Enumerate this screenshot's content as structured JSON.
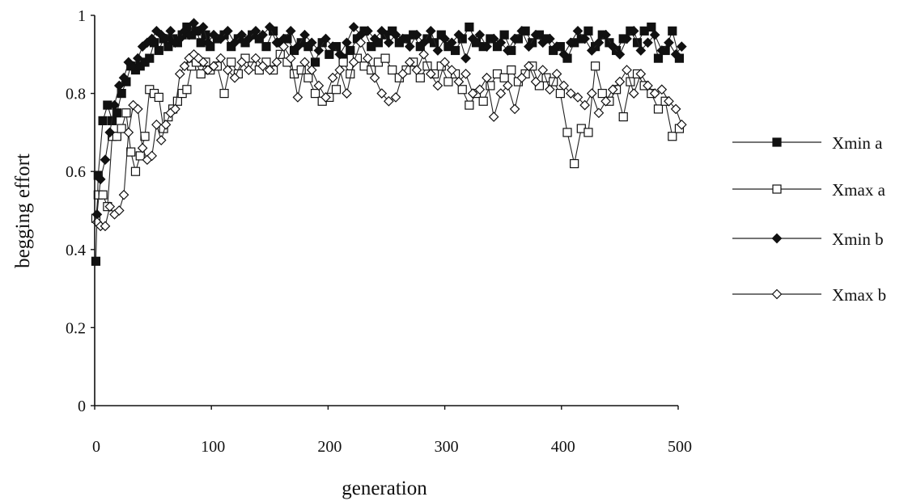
{
  "chart_data": {
    "type": "line",
    "title": "",
    "xlabel": "generation",
    "ylabel": "begging effort",
    "xlim": [
      0,
      500
    ],
    "ylim": [
      0,
      1
    ],
    "xticks": [
      "0",
      "100",
      "200",
      "300",
      "400",
      "500"
    ],
    "yticks": [
      "0",
      "0.2",
      "0.4",
      "0.6",
      "0.8",
      "1"
    ],
    "grid": false,
    "legend_position": "right",
    "series": [
      {
        "name": "Xmin a",
        "marker": "filled-square",
        "x": [
          1,
          3,
          7,
          11,
          15,
          19,
          23,
          27,
          31,
          35,
          39,
          43,
          47,
          51,
          55,
          59,
          63,
          67,
          71,
          75,
          79,
          83,
          87,
          91,
          95,
          99,
          105,
          111,
          117,
          123,
          129,
          135,
          141,
          147,
          153,
          159,
          165,
          171,
          177,
          183,
          189,
          195,
          201,
          207,
          213,
          219,
          225,
          231,
          237,
          243,
          249,
          255,
          261,
          267,
          273,
          279,
          285,
          291,
          297,
          303,
          309,
          315,
          321,
          327,
          333,
          339,
          345,
          351,
          357,
          363,
          369,
          375,
          381,
          387,
          393,
          399,
          405,
          411,
          417,
          423,
          429,
          435,
          441,
          447,
          453,
          459,
          465,
          471,
          477,
          483,
          489,
          495,
          501
        ],
        "y": [
          0.37,
          0.59,
          0.73,
          0.77,
          0.73,
          0.75,
          0.8,
          0.83,
          0.87,
          0.86,
          0.87,
          0.88,
          0.89,
          0.93,
          0.91,
          0.94,
          0.92,
          0.94,
          0.93,
          0.95,
          0.97,
          0.95,
          0.96,
          0.93,
          0.95,
          0.92,
          0.94,
          0.95,
          0.92,
          0.94,
          0.93,
          0.95,
          0.94,
          0.92,
          0.96,
          0.93,
          0.94,
          0.91,
          0.93,
          0.92,
          0.88,
          0.93,
          0.9,
          0.92,
          0.89,
          0.91,
          0.94,
          0.96,
          0.92,
          0.93,
          0.95,
          0.96,
          0.93,
          0.94,
          0.95,
          0.92,
          0.94,
          0.93,
          0.95,
          0.92,
          0.91,
          0.94,
          0.97,
          0.93,
          0.92,
          0.94,
          0.92,
          0.95,
          0.91,
          0.94,
          0.96,
          0.93,
          0.95,
          0.94,
          0.91,
          0.92,
          0.89,
          0.93,
          0.94,
          0.96,
          0.92,
          0.95,
          0.93,
          0.91,
          0.94,
          0.96,
          0.93,
          0.96,
          0.97,
          0.89,
          0.91,
          0.96,
          0.89
        ]
      },
      {
        "name": "Xmax a",
        "marker": "open-square",
        "x": [
          1,
          3,
          7,
          11,
          15,
          19,
          23,
          27,
          31,
          35,
          39,
          43,
          47,
          51,
          55,
          59,
          63,
          67,
          71,
          75,
          79,
          83,
          87,
          91,
          95,
          99,
          105,
          111,
          117,
          123,
          129,
          135,
          141,
          147,
          153,
          159,
          165,
          171,
          177,
          183,
          189,
          195,
          201,
          207,
          213,
          219,
          225,
          231,
          237,
          243,
          249,
          255,
          261,
          267,
          273,
          279,
          285,
          291,
          297,
          303,
          309,
          315,
          321,
          327,
          333,
          339,
          345,
          351,
          357,
          363,
          369,
          375,
          381,
          387,
          393,
          399,
          405,
          411,
          417,
          423,
          429,
          435,
          441,
          447,
          453,
          459,
          465,
          471,
          477,
          483,
          489,
          495,
          501
        ],
        "y": [
          0.48,
          0.54,
          0.54,
          0.51,
          0.69,
          0.69,
          0.71,
          0.75,
          0.65,
          0.6,
          0.64,
          0.69,
          0.81,
          0.8,
          0.79,
          0.71,
          0.74,
          0.76,
          0.78,
          0.8,
          0.81,
          0.87,
          0.88,
          0.85,
          0.88,
          0.86,
          0.87,
          0.8,
          0.88,
          0.85,
          0.89,
          0.87,
          0.86,
          0.88,
          0.86,
          0.9,
          0.88,
          0.85,
          0.86,
          0.84,
          0.8,
          0.78,
          0.79,
          0.81,
          0.88,
          0.85,
          0.89,
          0.87,
          0.86,
          0.88,
          0.89,
          0.86,
          0.84,
          0.86,
          0.88,
          0.84,
          0.87,
          0.85,
          0.87,
          0.83,
          0.85,
          0.81,
          0.77,
          0.8,
          0.78,
          0.82,
          0.85,
          0.84,
          0.86,
          0.83,
          0.85,
          0.87,
          0.82,
          0.84,
          0.83,
          0.8,
          0.7,
          0.62,
          0.71,
          0.7,
          0.87,
          0.8,
          0.78,
          0.81,
          0.74,
          0.83,
          0.85,
          0.82,
          0.8,
          0.76,
          0.78,
          0.69,
          0.71
        ]
      },
      {
        "name": "Xmin b",
        "marker": "filled-diamond",
        "x": [
          2,
          5,
          9,
          13,
          17,
          21,
          25,
          29,
          33,
          37,
          41,
          45,
          49,
          53,
          57,
          61,
          65,
          69,
          73,
          77,
          81,
          85,
          89,
          93,
          97,
          102,
          108,
          114,
          120,
          126,
          132,
          138,
          144,
          150,
          156,
          162,
          168,
          174,
          180,
          186,
          192,
          198,
          204,
          210,
          216,
          222,
          228,
          234,
          240,
          246,
          252,
          258,
          264,
          270,
          276,
          282,
          288,
          294,
          300,
          306,
          312,
          318,
          324,
          330,
          336,
          342,
          348,
          354,
          360,
          366,
          372,
          378,
          384,
          390,
          396,
          402,
          408,
          414,
          420,
          426,
          432,
          438,
          444,
          450,
          456,
          462,
          468,
          474,
          480,
          486,
          492,
          498,
          503
        ],
        "y": [
          0.49,
          0.58,
          0.63,
          0.7,
          0.77,
          0.82,
          0.84,
          0.88,
          0.87,
          0.89,
          0.92,
          0.93,
          0.94,
          0.96,
          0.95,
          0.94,
          0.96,
          0.93,
          0.94,
          0.96,
          0.95,
          0.98,
          0.96,
          0.97,
          0.93,
          0.95,
          0.94,
          0.96,
          0.93,
          0.95,
          0.94,
          0.96,
          0.95,
          0.97,
          0.93,
          0.94,
          0.96,
          0.92,
          0.95,
          0.93,
          0.91,
          0.94,
          0.92,
          0.9,
          0.93,
          0.97,
          0.95,
          0.96,
          0.94,
          0.96,
          0.93,
          0.95,
          0.94,
          0.92,
          0.95,
          0.93,
          0.96,
          0.91,
          0.94,
          0.93,
          0.95,
          0.89,
          0.94,
          0.95,
          0.92,
          0.94,
          0.93,
          0.91,
          0.94,
          0.96,
          0.92,
          0.95,
          0.93,
          0.94,
          0.92,
          0.9,
          0.93,
          0.96,
          0.94,
          0.91,
          0.93,
          0.95,
          0.92,
          0.9,
          0.94,
          0.96,
          0.91,
          0.93,
          0.95,
          0.91,
          0.93,
          0.9,
          0.92
        ]
      },
      {
        "name": "Xmax b",
        "marker": "open-diamond",
        "x": [
          2,
          5,
          9,
          13,
          17,
          21,
          25,
          29,
          33,
          37,
          41,
          45,
          49,
          53,
          57,
          61,
          65,
          69,
          73,
          77,
          81,
          85,
          89,
          93,
          97,
          102,
          108,
          114,
          120,
          126,
          132,
          138,
          144,
          150,
          156,
          162,
          168,
          174,
          180,
          186,
          192,
          198,
          204,
          210,
          216,
          222,
          228,
          234,
          240,
          246,
          252,
          258,
          264,
          270,
          276,
          282,
          288,
          294,
          300,
          306,
          312,
          318,
          324,
          330,
          336,
          342,
          348,
          354,
          360,
          366,
          372,
          378,
          384,
          390,
          396,
          402,
          408,
          414,
          420,
          426,
          432,
          438,
          444,
          450,
          456,
          462,
          468,
          474,
          480,
          486,
          492,
          498,
          503
        ],
        "y": [
          0.47,
          0.46,
          0.46,
          0.51,
          0.49,
          0.5,
          0.54,
          0.7,
          0.77,
          0.76,
          0.66,
          0.63,
          0.64,
          0.72,
          0.68,
          0.72,
          0.75,
          0.76,
          0.85,
          0.87,
          0.89,
          0.9,
          0.89,
          0.88,
          0.86,
          0.87,
          0.89,
          0.86,
          0.84,
          0.88,
          0.86,
          0.89,
          0.87,
          0.86,
          0.88,
          0.92,
          0.89,
          0.79,
          0.88,
          0.86,
          0.82,
          0.79,
          0.84,
          0.86,
          0.8,
          0.88,
          0.93,
          0.89,
          0.84,
          0.8,
          0.78,
          0.79,
          0.85,
          0.88,
          0.86,
          0.9,
          0.85,
          0.82,
          0.88,
          0.86,
          0.83,
          0.85,
          0.8,
          0.81,
          0.84,
          0.74,
          0.8,
          0.82,
          0.76,
          0.84,
          0.87,
          0.83,
          0.86,
          0.81,
          0.85,
          0.82,
          0.8,
          0.79,
          0.77,
          0.8,
          0.75,
          0.78,
          0.81,
          0.83,
          0.86,
          0.8,
          0.85,
          0.82,
          0.8,
          0.81,
          0.78,
          0.76,
          0.72
        ]
      }
    ]
  }
}
